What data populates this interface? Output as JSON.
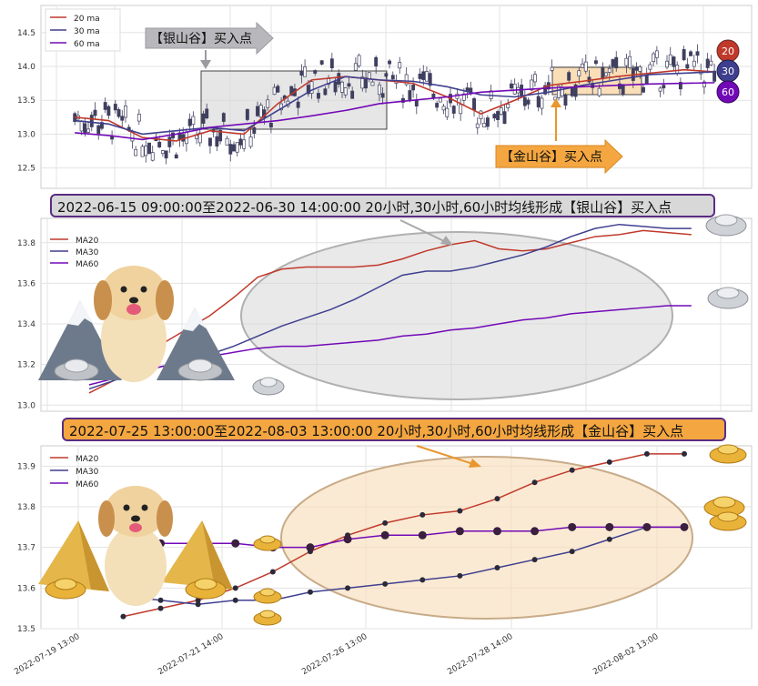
{
  "chart_data": [
    {
      "type": "line",
      "panel": "candlestick-overview",
      "ylim": [
        12.2,
        14.9
      ],
      "yticks": [
        "12.5",
        "13.0",
        "13.5",
        "14.0",
        "14.5"
      ],
      "legend": [
        "20 ma",
        "30 ma",
        "60 ma"
      ],
      "legend_placement": "top-left",
      "series": [
        {
          "name": "20 ma",
          "color": "#c0392b",
          "x": [
            0,
            10,
            20,
            30,
            40,
            50,
            60,
            70,
            80,
            90,
            100,
            110,
            120,
            130,
            140,
            150,
            160,
            170,
            180,
            189
          ],
          "values": [
            13.25,
            13.2,
            12.95,
            12.9,
            13.05,
            13.0,
            13.45,
            13.8,
            13.85,
            13.8,
            13.75,
            13.55,
            13.3,
            13.5,
            13.72,
            13.78,
            13.85,
            13.9,
            13.95,
            13.92
          ]
        },
        {
          "name": "30 ma",
          "color": "#3f3f8f",
          "x": [
            0,
            10,
            20,
            30,
            40,
            50,
            60,
            70,
            80,
            90,
            100,
            110,
            120,
            130,
            140,
            150,
            160,
            170,
            180,
            189
          ],
          "values": [
            13.2,
            13.15,
            13.0,
            13.05,
            13.1,
            13.05,
            13.35,
            13.65,
            13.85,
            13.8,
            13.78,
            13.7,
            13.58,
            13.55,
            13.62,
            13.72,
            13.8,
            13.88,
            13.9,
            13.92
          ]
        },
        {
          "name": "60 ma",
          "color": "#7209b7",
          "x": [
            0,
            10,
            20,
            30,
            40,
            50,
            60,
            70,
            80,
            90,
            100,
            110,
            120,
            130,
            140,
            150,
            160,
            170,
            180,
            189
          ],
          "values": [
            13.02,
            12.98,
            12.92,
            13.0,
            13.1,
            13.15,
            13.2,
            13.27,
            13.35,
            13.45,
            13.5,
            13.55,
            13.62,
            13.65,
            13.68,
            13.7,
            13.72,
            13.74,
            13.75,
            13.76
          ]
        }
      ],
      "annotations": [
        "【银山谷】买入点",
        "【金山谷】买入点"
      ],
      "badges": [
        "20",
        "30",
        "60"
      ]
    },
    {
      "type": "line",
      "panel": "silver-valley-zoom",
      "ylim": [
        12.97,
        13.92
      ],
      "yticks": [
        "13.0",
        "13.2",
        "13.4",
        "13.6",
        "13.8"
      ],
      "legend": [
        "MA20",
        "MA30",
        "MA60"
      ],
      "legend_placement": "top-left",
      "series": [
        {
          "name": "MA20",
          "color": "#c0392b",
          "x": [
            0,
            1,
            2,
            3,
            4,
            5,
            6,
            7,
            8,
            9,
            10,
            11,
            12,
            13,
            14,
            15,
            16,
            17,
            18,
            19,
            20,
            21,
            22,
            23,
            24,
            25
          ],
          "values": [
            13.06,
            13.12,
            13.22,
            13.3,
            13.37,
            13.44,
            13.53,
            13.63,
            13.67,
            13.68,
            13.68,
            13.68,
            13.69,
            13.72,
            13.76,
            13.79,
            13.81,
            13.77,
            13.76,
            13.77,
            13.8,
            13.83,
            13.84,
            13.86,
            13.85,
            13.84
          ]
        },
        {
          "name": "MA30",
          "color": "#3f3f8f",
          "x": [
            0,
            1,
            2,
            3,
            4,
            5,
            6,
            7,
            8,
            9,
            10,
            11,
            12,
            13,
            14,
            15,
            16,
            17,
            18,
            19,
            20,
            21,
            22,
            23,
            24,
            25
          ],
          "values": [
            13.08,
            13.12,
            13.16,
            13.19,
            13.21,
            13.25,
            13.29,
            13.34,
            13.39,
            13.43,
            13.47,
            13.52,
            13.58,
            13.64,
            13.66,
            13.66,
            13.68,
            13.71,
            13.74,
            13.78,
            13.83,
            13.87,
            13.89,
            13.88,
            13.87,
            13.87
          ]
        },
        {
          "name": "MA60",
          "color": "#7209b7",
          "x": [
            0,
            1,
            2,
            3,
            4,
            5,
            6,
            7,
            8,
            9,
            10,
            11,
            12,
            13,
            14,
            15,
            16,
            17,
            18,
            19,
            20,
            21,
            22,
            23,
            24,
            25
          ],
          "values": [
            13.1,
            13.13,
            13.16,
            13.19,
            13.21,
            13.24,
            13.26,
            13.28,
            13.29,
            13.29,
            13.3,
            13.31,
            13.32,
            13.34,
            13.35,
            13.37,
            13.38,
            13.4,
            13.42,
            13.43,
            13.45,
            13.46,
            13.47,
            13.48,
            13.49,
            13.49
          ]
        }
      ]
    },
    {
      "type": "line",
      "panel": "gold-valley-zoom",
      "ylim": [
        13.5,
        13.95
      ],
      "yticks": [
        "13.5",
        "13.6",
        "13.7",
        "13.8",
        "13.9"
      ],
      "legend": [
        "MA20",
        "MA30",
        "MA60"
      ],
      "legend_placement": "top-left",
      "xtick_labels": [
        "2022-07-19 13:00",
        "2022-07-21 14:00",
        "2022-07-26 13:00",
        "2022-07-28 14:00",
        "2022-08-02 13:00"
      ],
      "series": [
        {
          "name": "MA20",
          "color": "#c0392b",
          "x": [
            0,
            1,
            2,
            3,
            4,
            5,
            6,
            7,
            8,
            9,
            10,
            11,
            12,
            13,
            14,
            15
          ],
          "values": [
            13.53,
            13.55,
            13.57,
            13.6,
            13.64,
            13.69,
            13.73,
            13.76,
            13.78,
            13.79,
            13.82,
            13.86,
            13.89,
            13.91,
            13.93,
            13.93
          ]
        },
        {
          "name": "MA30",
          "color": "#3f3f8f",
          "x": [
            0,
            1,
            2,
            3,
            4,
            5,
            6,
            7,
            8,
            9,
            10,
            11,
            12,
            13,
            14,
            15
          ],
          "values": [
            13.58,
            13.57,
            13.56,
            13.57,
            13.57,
            13.59,
            13.6,
            13.61,
            13.62,
            13.63,
            13.65,
            13.67,
            13.69,
            13.72,
            13.75,
            13.75
          ]
        },
        {
          "name": "MA60",
          "color": "#7209b7",
          "x": [
            0,
            1,
            2,
            3,
            4,
            5,
            6,
            7,
            8,
            9,
            10,
            11,
            12,
            13,
            14,
            15
          ],
          "values": [
            13.71,
            13.71,
            13.71,
            13.71,
            13.7,
            13.7,
            13.72,
            13.73,
            13.73,
            13.74,
            13.74,
            13.74,
            13.75,
            13.75,
            13.75,
            13.75
          ]
        }
      ]
    }
  ],
  "banners": {
    "silver": "2022-06-15 09:00:00至2022-06-30 14:00:00 20小时,30小时,60小时均线形成【银山谷】买入点",
    "gold": "2022-07-25 13:00:00至2022-08-03 13:00:00 20小时,30小时,60小时均线形成【金山谷】买入点"
  },
  "colors": {
    "ma20": "#c0392b",
    "ma30": "#3f3f8f",
    "ma60": "#7209b7",
    "silver_fill": "#d8d8d8",
    "gold_fill": "#f4a640",
    "up": "#ffffff",
    "down": "#3f3f5f"
  },
  "icons": [
    "dog-mascot-icon",
    "silver-ingot-icon",
    "gold-ingot-icon",
    "mountain-icon",
    "gold-pyramid-icon"
  ]
}
